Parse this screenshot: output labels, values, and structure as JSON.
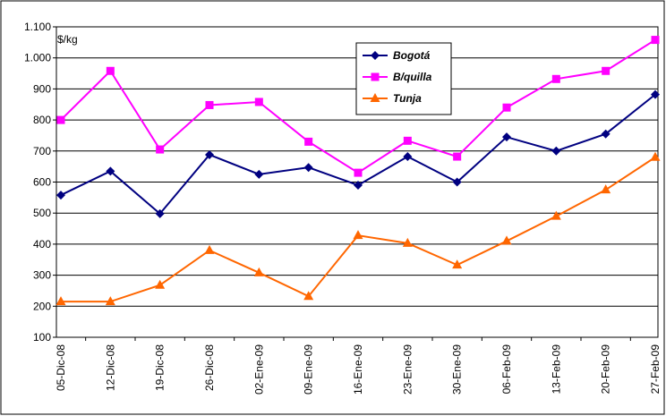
{
  "chart_data": {
    "type": "line",
    "unit_label": "$/kg",
    "categories": [
      "05-Dic-08",
      "12-Dic-08",
      "19-Dic-08",
      "26-Dic-08",
      "02-Ene-09",
      "09-Ene-09",
      "16-Ene-09",
      "23-Ene-09",
      "30-Ene-09",
      "06-Feb-09",
      "13-Feb-09",
      "20-Feb-09",
      "27-Feb-09"
    ],
    "series": [
      {
        "name": "Bogotá",
        "color": "#000080",
        "marker": "diamond",
        "values": [
          558,
          635,
          498,
          688,
          625,
          647,
          590,
          682,
          600,
          745,
          700,
          755,
          882
        ]
      },
      {
        "name": "B/quilla",
        "color": "#ff00ff",
        "marker": "square",
        "values": [
          800,
          958,
          705,
          848,
          858,
          730,
          630,
          733,
          682,
          840,
          932,
          958,
          1058
        ]
      },
      {
        "name": "Tunja",
        "color": "#ff6600",
        "marker": "triangle",
        "values": [
          215,
          215,
          268,
          380,
          308,
          232,
          428,
          403,
          333,
          410,
          490,
          575,
          680
        ]
      }
    ],
    "ylim": [
      100,
      1100
    ],
    "yticks": [
      100,
      200,
      300,
      400,
      500,
      600,
      700,
      800,
      900,
      1000,
      1100
    ],
    "ytick_labels": [
      "100",
      "200",
      "300",
      "400",
      "500",
      "600",
      "700",
      "800",
      "900",
      "1.000",
      "1.100"
    ],
    "grid": "horizontal",
    "legend": "top-center"
  }
}
